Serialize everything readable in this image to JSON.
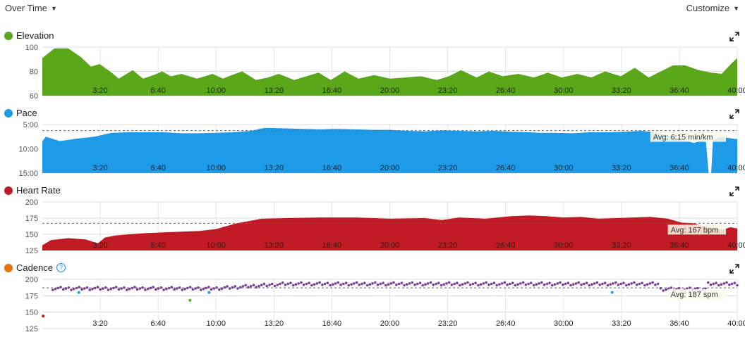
{
  "header": {
    "view_label": "Over Time",
    "customize_label": "Customize"
  },
  "x_ticks": [
    "3:20",
    "6:40",
    "10:00",
    "13:20",
    "16:40",
    "20:00",
    "23:20",
    "26:40",
    "30:00",
    "33:20",
    "36:40",
    "40:00"
  ],
  "chart_data": [
    {
      "type": "area",
      "title": "Elevation",
      "color": "#5aa81a",
      "ylim": [
        60,
        100
      ],
      "yticks": [
        "100",
        "80",
        "60"
      ],
      "x": [
        0,
        0.7,
        1.5,
        2.2,
        2.8,
        3.3,
        3.9,
        4.4,
        5.2,
        5.8,
        6.4,
        6.9,
        7.4,
        8.0,
        8.9,
        9.8,
        10.4,
        10.9,
        11.5,
        12.3,
        13.0,
        13.6,
        14.5,
        15.2,
        15.9,
        16.6,
        17.4,
        18.2,
        19.1,
        20.0,
        20.9,
        21.8,
        22.7,
        23.4,
        24.1,
        25.0,
        25.7,
        26.5,
        27.4,
        28.3,
        29.1,
        29.9,
        30.8,
        31.6,
        32.4,
        33.3,
        34.1,
        34.9,
        35.6,
        36.3,
        37.0,
        37.8,
        38.5,
        39.1,
        39.7,
        40.0
      ],
      "values": [
        91,
        99,
        99,
        92,
        84,
        86,
        80,
        74,
        81,
        74,
        77,
        80,
        76,
        78,
        74,
        78,
        74,
        77,
        80,
        73,
        75,
        78,
        73,
        76,
        79,
        73,
        80,
        74,
        77,
        74,
        75,
        76,
        73,
        76,
        81,
        75,
        80,
        76,
        78,
        75,
        79,
        75,
        78,
        75,
        80,
        76,
        83,
        75,
        80,
        85,
        85,
        81,
        79,
        78,
        87,
        91
      ]
    },
    {
      "type": "area",
      "title": "Pace",
      "color": "#1e9be8",
      "ylim": [
        5,
        15
      ],
      "inverted": true,
      "yticks": [
        "5:00",
        "10:00",
        "15:00"
      ],
      "average": 6.25,
      "average_label": "Avg: 6:15 min/km",
      "x": [
        0,
        0.2,
        1.0,
        2.0,
        3.0,
        4.0,
        5.0,
        6.0,
        7.0,
        8.0,
        9.0,
        10.0,
        11.0,
        12.0,
        12.8,
        14.0,
        15.0,
        16.0,
        17.0,
        18.0,
        19.0,
        20.0,
        21.0,
        22.0,
        23.0,
        24.0,
        25.0,
        26.0,
        27.0,
        28.0,
        28.6,
        29.5,
        30.5,
        31.5,
        32.5,
        33.5,
        34.5,
        35.0,
        35.6,
        36.2,
        36.8,
        37.5,
        38.0,
        38.2,
        38.35,
        38.5,
        38.6,
        39.0,
        39.5,
        40.0
      ],
      "values": [
        8.5,
        7.5,
        8.4,
        7.9,
        7.5,
        6.7,
        6.6,
        6.6,
        6.6,
        6.8,
        6.8,
        6.7,
        6.6,
        6.3,
        5.7,
        5.8,
        5.9,
        6.0,
        5.9,
        6.0,
        6.1,
        6.1,
        6.3,
        6.4,
        6.2,
        6.3,
        6.4,
        6.3,
        6.5,
        6.6,
        6.7,
        6.7,
        6.8,
        6.6,
        6.6,
        6.5,
        6.3,
        6.5,
        6.9,
        7.4,
        8.0,
        8.8,
        8.2,
        8.6,
        15.0,
        15.0,
        8.3,
        7.5,
        7.8,
        8.0
      ]
    },
    {
      "type": "area",
      "title": "Heart Rate",
      "color": "#c01a24",
      "ylim": [
        125,
        200
      ],
      "yticks": [
        "200",
        "175",
        "150",
        "125"
      ],
      "average": 167,
      "average_label": "Avg: 167 bpm",
      "x": [
        0,
        0.5,
        1.5,
        2.5,
        3.2,
        3.6,
        4.2,
        5.0,
        6.0,
        7.0,
        8.0,
        9.0,
        10.0,
        10.5,
        11.2,
        12.0,
        12.6,
        14.0,
        16.0,
        18.0,
        20.0,
        22.0,
        23.0,
        24.0,
        25.5,
        27.0,
        28.0,
        29.0,
        30.0,
        31.0,
        32.0,
        33.0,
        34.0,
        35.0,
        36.0,
        36.8,
        37.5,
        38.0,
        38.6,
        39.2,
        39.6,
        40.0
      ],
      "values": [
        133,
        141,
        144,
        142,
        136,
        145,
        148,
        150,
        152,
        153,
        154,
        155,
        158,
        162,
        167,
        171,
        174,
        175,
        176,
        176,
        174,
        175,
        172,
        176,
        174,
        178,
        179,
        178,
        176,
        177,
        174,
        175,
        176,
        177,
        174,
        168,
        167,
        163,
        160,
        157,
        161,
        159
      ]
    },
    {
      "type": "scatter",
      "title": "Cadence",
      "color": "#7b3f9e",
      "ylim": [
        125,
        200
      ],
      "yticks": [
        "200",
        "175",
        "150",
        "125"
      ],
      "average": 187,
      "average_label": "Avg: 187 spm",
      "outliers": [
        {
          "x": 0.05,
          "y": 144,
          "color": "#c01a24"
        },
        {
          "x": 2.1,
          "y": 180,
          "color": "#1e9be8"
        },
        {
          "x": 8.5,
          "y": 168,
          "color": "#5aa81a"
        },
        {
          "x": 9.6,
          "y": 180,
          "color": "#1e9be8"
        },
        {
          "x": 32.8,
          "y": 180,
          "color": "#1e9be8"
        }
      ]
    }
  ]
}
